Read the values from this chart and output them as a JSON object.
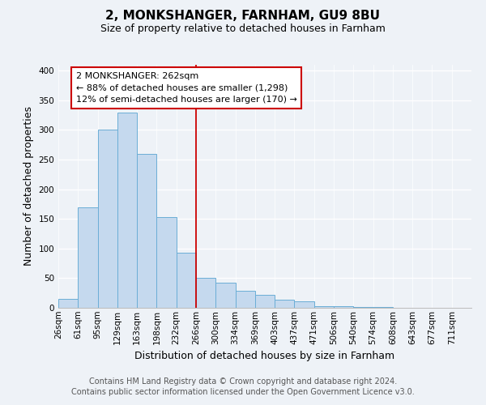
{
  "title": "2, MONKSHANGER, FARNHAM, GU9 8BU",
  "subtitle": "Size of property relative to detached houses in Farnham",
  "xlabel": "Distribution of detached houses by size in Farnham",
  "ylabel": "Number of detached properties",
  "bar_values": [
    15,
    170,
    300,
    330,
    260,
    153,
    93,
    50,
    43,
    29,
    22,
    13,
    11,
    3,
    3,
    2,
    2
  ],
  "bar_color": "#c5d9ee",
  "bar_edge_color": "#6baed6",
  "annotation_line_color": "#cc0000",
  "annotation_box_edge_color": "#cc0000",
  "annotation_box_text": "2 MONKSHANGER: 262sqm\n← 88% of detached houses are smaller (1,298)\n12% of semi-detached houses are larger (170) →",
  "ylim": [
    0,
    410
  ],
  "yticks": [
    0,
    50,
    100,
    150,
    200,
    250,
    300,
    350,
    400
  ],
  "all_tick_labels": [
    "26sqm",
    "61sqm",
    "95sqm",
    "129sqm",
    "163sqm",
    "198sqm",
    "232sqm",
    "266sqm",
    "300sqm",
    "334sqm",
    "369sqm",
    "403sqm",
    "437sqm",
    "471sqm",
    "506sqm",
    "540sqm",
    "574sqm",
    "608sqm",
    "643sqm",
    "677sqm",
    "711sqm"
  ],
  "footer_line1": "Contains HM Land Registry data © Crown copyright and database right 2024.",
  "footer_line2": "Contains public sector information licensed under the Open Government Licence v3.0.",
  "background_color": "#eef2f7",
  "title_fontsize": 11,
  "subtitle_fontsize": 9,
  "axis_label_fontsize": 9,
  "tick_fontsize": 7.5,
  "annotation_fontsize": 8,
  "footer_fontsize": 7
}
